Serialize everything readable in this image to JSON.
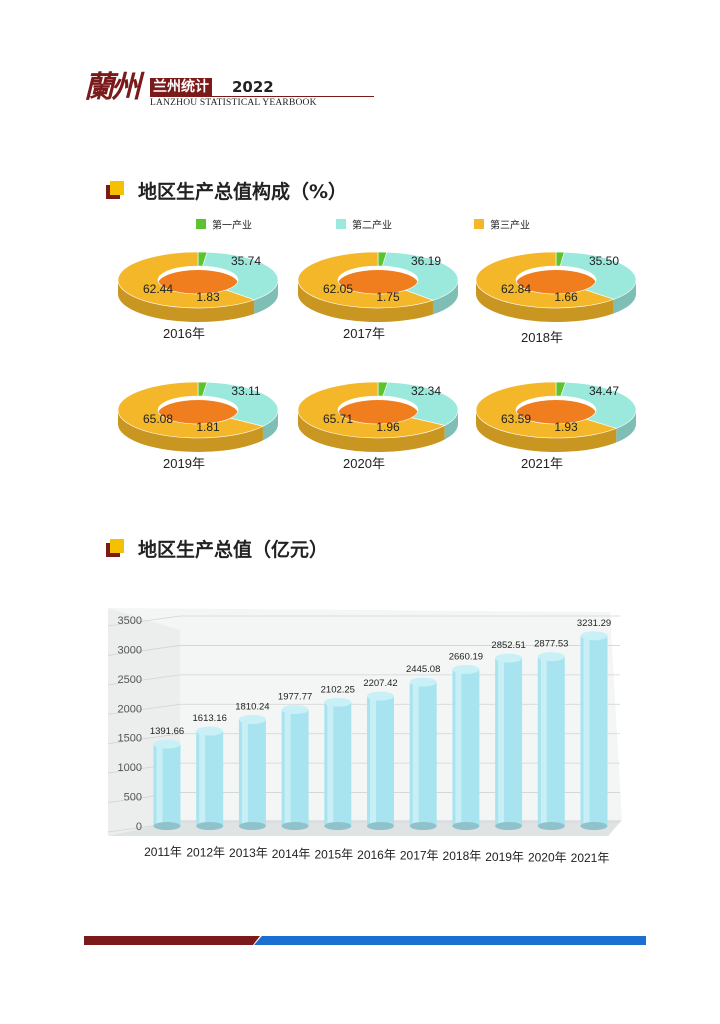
{
  "header": {
    "logo_calligraphy": "蘭州",
    "logo_title": "兰州统计",
    "year": "2022",
    "subtitle": "LANZHOU STATISTICAL YEARBOOK"
  },
  "sections": {
    "composition_title": "地区生产总值构成（%）",
    "gdp_title": "地区生产总值（亿元）"
  },
  "colors": {
    "primary": "#5ec22e",
    "secondary": "#9be8dc",
    "tertiary": "#f5b72a",
    "tertiary_inner": "#f07e1f",
    "bar": "#a8e4ef",
    "brand": "#7a1a1a",
    "accent_blue": "#1a6fd1"
  },
  "chart_data": [
    {
      "type": "pie",
      "title": "地区生产总值构成（%）",
      "legend": [
        "第一产业",
        "第二产业",
        "第三产业"
      ],
      "legend_position": "top",
      "panels": [
        {
          "label": "2016年",
          "values": [
            1.83,
            35.74,
            62.44
          ]
        },
        {
          "label": "2017年",
          "values": [
            1.75,
            36.19,
            62.05
          ]
        },
        {
          "label": "2018年",
          "values": [
            1.66,
            35.5,
            62.84
          ]
        },
        {
          "label": "2019年",
          "values": [
            1.81,
            33.11,
            65.08
          ]
        },
        {
          "label": "2020年",
          "values": [
            1.96,
            32.34,
            65.71
          ]
        },
        {
          "label": "2021年",
          "values": [
            1.93,
            34.47,
            63.59
          ]
        }
      ]
    },
    {
      "type": "bar",
      "title": "地区生产总值（亿元）",
      "categories": [
        "2011年",
        "2012年",
        "2013年",
        "2014年",
        "2015年",
        "2016年",
        "2017年",
        "2018年",
        "2019年",
        "2020年",
        "2021年"
      ],
      "values": [
        1391.66,
        1613.16,
        1810.24,
        1977.77,
        2102.25,
        2207.42,
        2445.08,
        2660.19,
        2852.51,
        2877.53,
        3231.29
      ],
      "value_labels": [
        "1391.66",
        "1613.16",
        "1810.24",
        "1977.77",
        "2102.25",
        "2207.42",
        "2445.08",
        "2660.19",
        "2852.51",
        "2877.53",
        "3231.29"
      ],
      "yticks": [
        "0",
        "500",
        "1000",
        "1500",
        "2000",
        "2500",
        "3000",
        "3500"
      ],
      "ylim": [
        0,
        3500
      ],
      "grid": true
    }
  ]
}
